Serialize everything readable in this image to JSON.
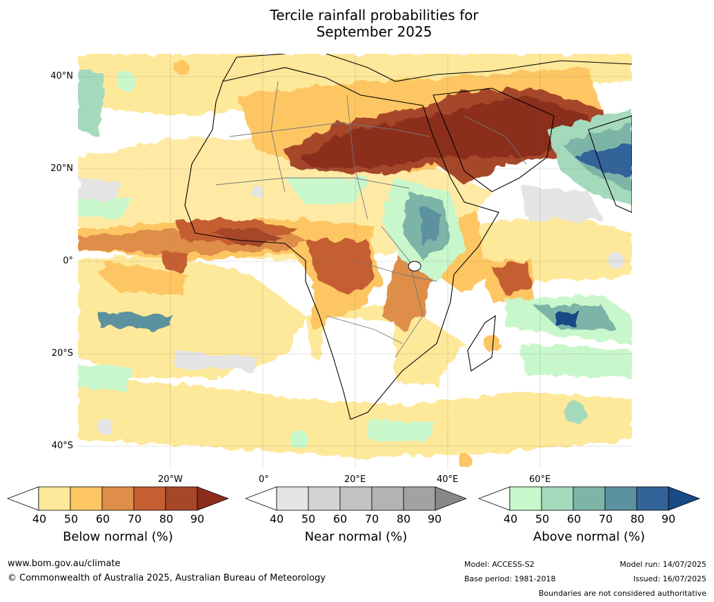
{
  "title": {
    "line1": "Tercile rainfall probabilities for",
    "line2": "September 2025"
  },
  "lat_labels": [
    "40°N",
    "20°N",
    "0°",
    "20°S",
    "40°S"
  ],
  "lon_labels": [
    "20°W",
    "0°",
    "20°E",
    "40°E",
    "60°E"
  ],
  "colorbars": [
    {
      "label": "Below normal (%)",
      "ticks": [
        "40",
        "50",
        "60",
        "70",
        "80",
        "90"
      ],
      "colors": [
        "#ffffff",
        "#fee89a",
        "#fdc663",
        "#de8e48",
        "#c55f32",
        "#a6472a",
        "#8c2d1b"
      ]
    },
    {
      "label": "Near normal (%)",
      "ticks": [
        "40",
        "50",
        "60",
        "70",
        "80",
        "90"
      ],
      "colors": [
        "#ffffff",
        "#e4e4e4",
        "#d3d3d3",
        "#c3c3c3",
        "#b3b3b3",
        "#a2a2a2",
        "#888888"
      ]
    },
    {
      "label": "Above normal (%)",
      "ticks": [
        "40",
        "50",
        "60",
        "70",
        "80",
        "90"
      ],
      "colors": [
        "#ffffff",
        "#c8f7cb",
        "#a5d9bb",
        "#7db4a8",
        "#5b91a0",
        "#336499",
        "#184a85"
      ]
    }
  ],
  "footer": {
    "website": "www.bom.gov.au/climate",
    "copyright": "© Commonwealth of Australia 2025, Australian Bureau of Meteorology",
    "model": "Model: ACCESS-S2",
    "base_period": "Base period: 1981-2018",
    "model_run": "Model run: 14/07/2025",
    "issued": "Issued: 16/07/2025",
    "disclaimer": "Boundaries are not considered authoritative"
  }
}
